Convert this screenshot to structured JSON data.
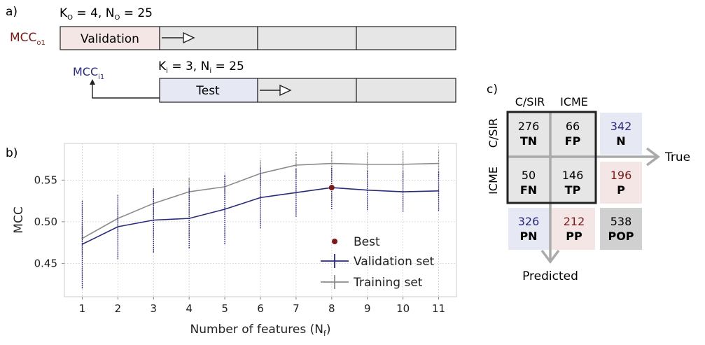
{
  "panel_a": {
    "label": "a)",
    "outer_params": "K",
    "outer_k_sub": "O",
    "outer_k_val": " = 4, N",
    "outer_n_sub": "O",
    "outer_n_val": " = 25",
    "inner_params": "K",
    "inner_k_sub": "i",
    "inner_k_val": " = 3, N",
    "inner_n_sub": "i",
    "inner_n_val": " = 25",
    "mcc_o_main": "MCC",
    "mcc_o_sub": "o1",
    "mcc_i_main": "MCC",
    "mcc_i_sub": "i1",
    "validation_label": "Validation",
    "test_label": "Test",
    "colors": {
      "validation_fill": "#f3e6e4",
      "test_fill": "#e6e8f4",
      "fold_fill": "#e6e6e6",
      "mcc_o": "#7a1a1a",
      "mcc_i": "#2a2a7a"
    }
  },
  "panel_b": {
    "label": "b)"
  },
  "panel_c": {
    "label": "c)",
    "col_headers": [
      "C/SIR",
      "ICME"
    ],
    "row_headers": [
      "C/SIR",
      "ICME"
    ],
    "cells": [
      {
        "value": "276",
        "tag": "TN"
      },
      {
        "value": "66",
        "tag": "FP"
      },
      {
        "value": "50",
        "tag": "FN"
      },
      {
        "value": "146",
        "tag": "TP"
      }
    ],
    "row_totals": [
      {
        "value": "342",
        "tag": "N"
      },
      {
        "value": "196",
        "tag": "P"
      }
    ],
    "col_totals": [
      {
        "value": "326",
        "tag": "PN"
      },
      {
        "value": "212",
        "tag": "PP"
      }
    ],
    "grand_total": {
      "value": "538",
      "tag": "POP"
    },
    "true_label": "True",
    "predicted_label": "Predicted",
    "colors": {
      "blue": "#2a2a7a",
      "red": "#7a1a1a",
      "blue_bg": "#e6e8f4",
      "red_bg": "#f3e6e4",
      "grey_bg": "#d0d0d0",
      "cell_bg": "#e6e6e6",
      "arrow": "#aaaaaa"
    }
  },
  "chart_data": {
    "type": "line",
    "xlabel": "Number of features (N",
    "xlabel_sub": "f",
    "xlabel_close": ")",
    "ylabel": "MCC",
    "x": [
      1,
      2,
      3,
      4,
      5,
      6,
      7,
      8,
      9,
      10,
      11
    ],
    "xlim": [
      0.5,
      11.5
    ],
    "ylim": [
      0.41,
      0.594
    ],
    "yticks": [
      0.45,
      0.5,
      0.55
    ],
    "ytick_labels": [
      "0.45",
      "0.50",
      "0.55"
    ],
    "grid": true,
    "legend_position": "center-right",
    "series": [
      {
        "name": "Validation set",
        "color": "#2a2a7a",
        "values": [
          0.473,
          0.494,
          0.502,
          0.504,
          0.515,
          0.529,
          0.535,
          0.541,
          0.538,
          0.536,
          0.537
        ],
        "err_low": [
          0.42,
          0.455,
          0.463,
          0.468,
          0.473,
          0.492,
          0.506,
          0.515,
          0.514,
          0.512,
          0.513
        ],
        "err_high": [
          0.526,
          0.533,
          0.54,
          0.541,
          0.556,
          0.566,
          0.564,
          0.566,
          0.562,
          0.561,
          0.561
        ]
      },
      {
        "name": "Training set",
        "color": "#8c8c8c",
        "values": [
          0.48,
          0.504,
          0.522,
          0.536,
          0.542,
          0.558,
          0.568,
          0.57,
          0.569,
          0.569,
          0.57
        ],
        "err_low": [
          0.462,
          0.488,
          0.505,
          0.52,
          0.527,
          0.543,
          0.552,
          0.555,
          0.553,
          0.553,
          0.555
        ],
        "err_high": [
          0.498,
          0.52,
          0.54,
          0.553,
          0.558,
          0.574,
          0.584,
          0.585,
          0.584,
          0.585,
          0.586
        ]
      }
    ],
    "best": {
      "name": "Best",
      "x": 8,
      "y": 0.541,
      "color": "#7a1a1a"
    }
  }
}
